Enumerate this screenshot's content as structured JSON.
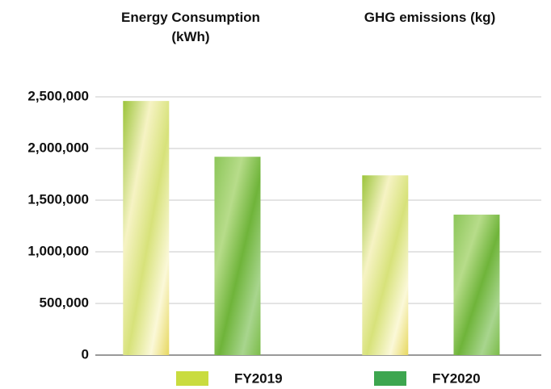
{
  "chart_data": {
    "type": "bar",
    "categories": [
      "Energy Consumption (kWh)",
      "GHG emissions (kg)"
    ],
    "series": [
      {
        "name": "FY2019",
        "color": "#c9dc3f",
        "values": [
          2460000,
          1740000
        ]
      },
      {
        "name": "FY2020",
        "color": "#3da64f",
        "values": [
          1920000,
          1360000
        ]
      }
    ],
    "ylim": [
      0,
      2500000
    ],
    "yticks": [
      0,
      {
        "value": 500000,
        "label": "500,000"
      },
      {
        "value": 1000000,
        "label": "1,000,000"
      },
      {
        "value": 1500000,
        "label": "1,500,000"
      },
      {
        "value": 2000000,
        "label": "2,000,000"
      },
      {
        "value": 2500000,
        "label": "2,500,000"
      }
    ],
    "grid": true,
    "legend": "bottom"
  }
}
